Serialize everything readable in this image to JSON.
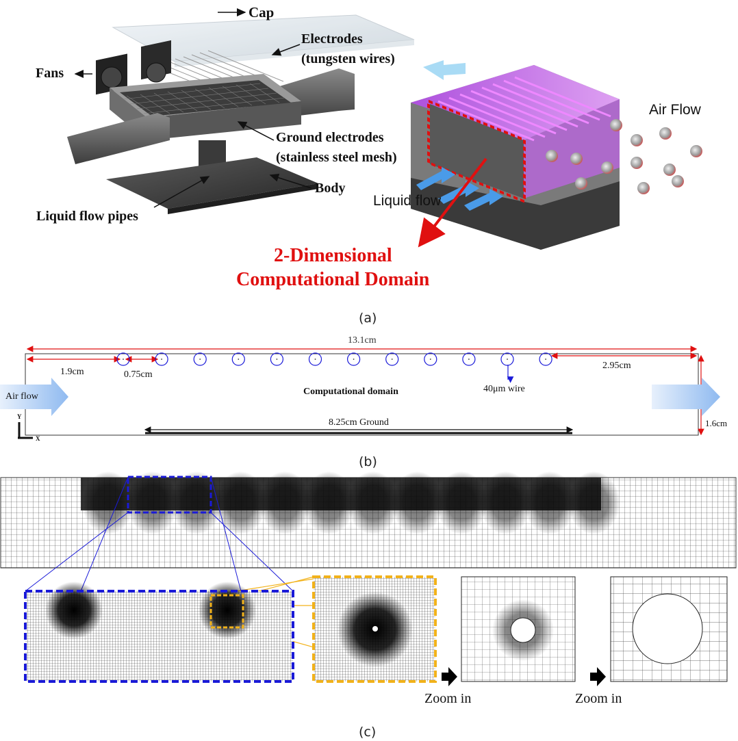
{
  "panel_a": {
    "labels": {
      "cap": "Cap",
      "electrodes": "Electrodes",
      "electrodes_sub": "(tungsten wires)",
      "fans": "Fans",
      "ground": "Ground electrodes",
      "ground_sub": "(stainless steel mesh)",
      "body": "Body",
      "pipes": "Liquid flow pipes",
      "air_flow": "Air Flow",
      "liquid_flow": "Liquid flow",
      "domain_line1": "2-Dimensional",
      "domain_line2": "Computational Domain"
    },
    "caption": "(a)"
  },
  "panel_b": {
    "total_length": "13.1cm",
    "first_offset": "1.9cm",
    "spacing": "0.75cm",
    "last_offset": "2.95cm",
    "height": "1.6cm",
    "wire": "40μm wire",
    "domain": "Computational domain",
    "ground": "8.25cm Ground",
    "air_flow": "Air flow",
    "axis_y": "Y",
    "axis_x": "X",
    "wire_count": 12,
    "caption": "(b)"
  },
  "panel_c": {
    "zoom_1": "Zoom in",
    "zoom_2": "Zoom in",
    "caption": "(c)"
  },
  "colors": {
    "red": "#e01010",
    "blue": "#1a1ad8",
    "gold": "#f2b21a",
    "purple": "#c45bf0",
    "mesh": "#222222"
  }
}
